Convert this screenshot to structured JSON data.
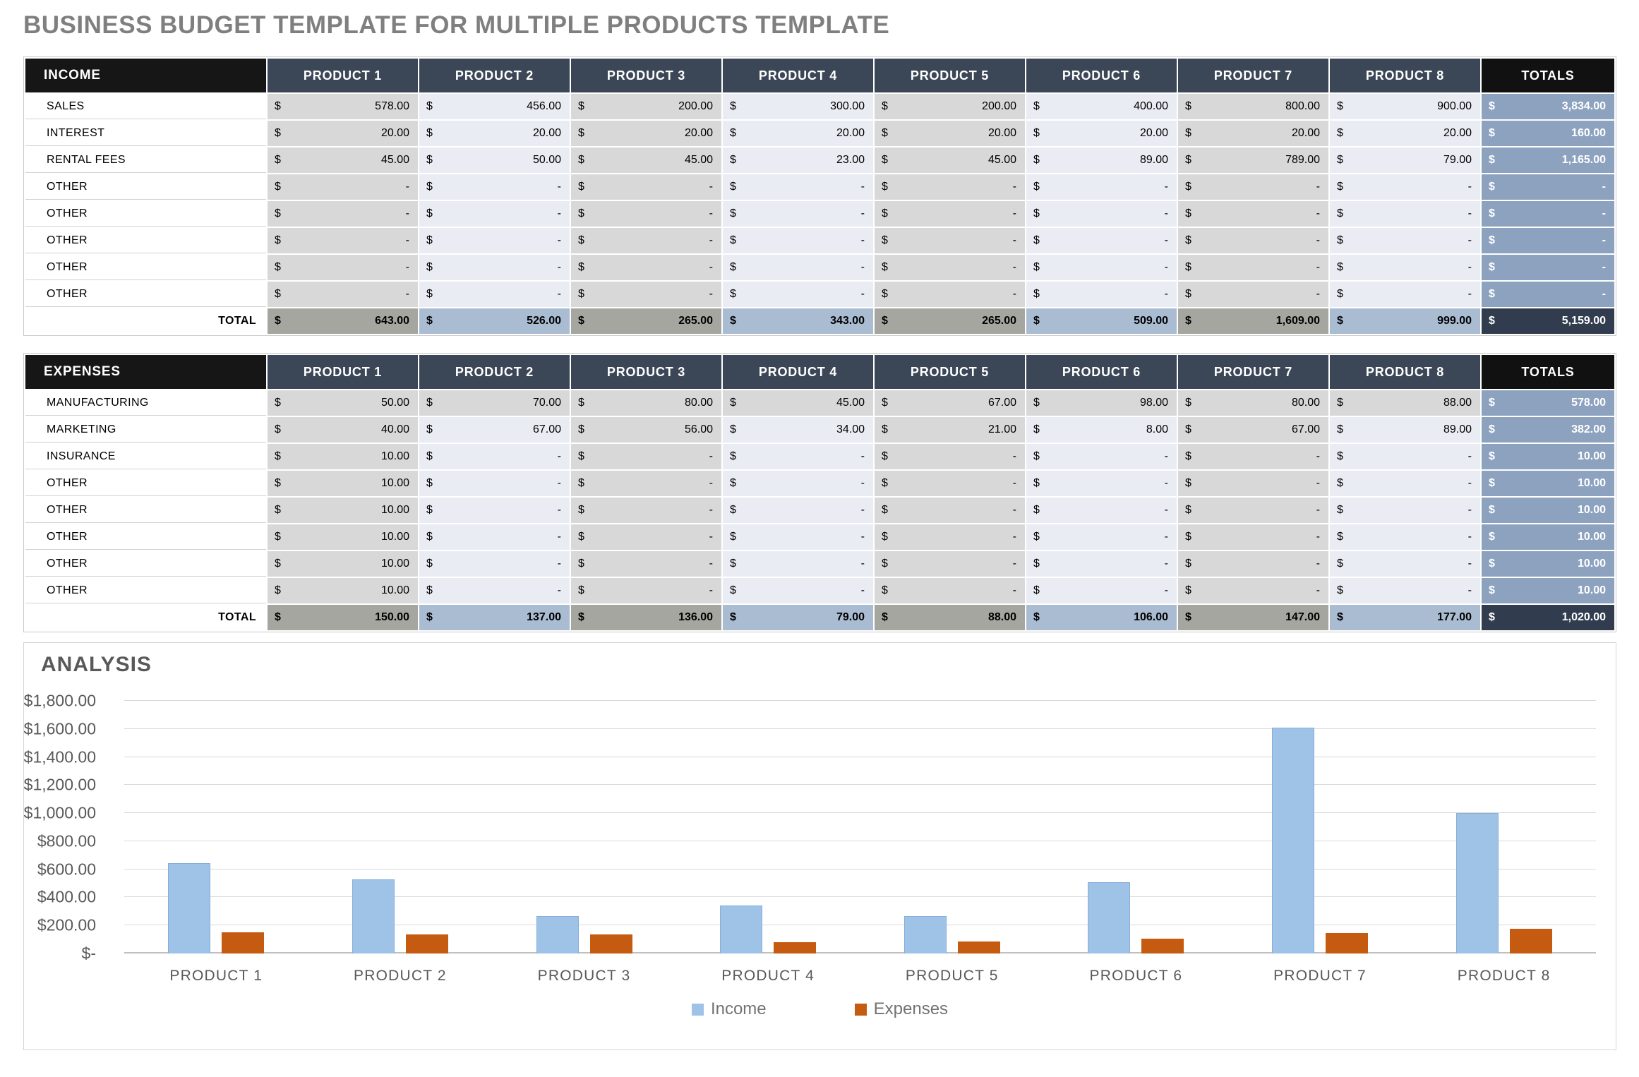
{
  "title": "BUSINESS BUDGET TEMPLATE FOR MULTIPLE PRODUCTS TEMPLATE",
  "currency": "$",
  "colors": {
    "header_black": "#161616",
    "header_navy": "#3b4757",
    "column_gray": "#d8d8d8",
    "column_light": "#e9ecf2",
    "totals_column_blue": "#8ca2bf",
    "total_row_gray": "#a6a6a1",
    "total_row_blue": "#a9bcd2",
    "grand_total_navy": "#313d4f",
    "income_bar": "#9fc2e7",
    "expenses_bar": "#c55a11"
  },
  "tables": [
    {
      "id": "income",
      "header_label": "INCOME",
      "totals_label": "TOTALS",
      "product_columns": [
        "PRODUCT 1",
        "PRODUCT 2",
        "PRODUCT 3",
        "PRODUCT 4",
        "PRODUCT 5",
        "PRODUCT 6",
        "PRODUCT 7",
        "PRODUCT 8"
      ],
      "all_gray_rows": [],
      "rows": [
        {
          "label": "SALES",
          "values": [
            "578.00",
            "456.00",
            "200.00",
            "300.00",
            "200.00",
            "400.00",
            "800.00",
            "900.00"
          ],
          "total": "3,834.00"
        },
        {
          "label": "INTEREST",
          "values": [
            "20.00",
            "20.00",
            "20.00",
            "20.00",
            "20.00",
            "20.00",
            "20.00",
            "20.00"
          ],
          "total": "160.00"
        },
        {
          "label": "RENTAL FEES",
          "values": [
            "45.00",
            "50.00",
            "45.00",
            "23.00",
            "45.00",
            "89.00",
            "789.00",
            "79.00"
          ],
          "total": "1,165.00"
        },
        {
          "label": "OTHER",
          "values": [
            "-",
            "-",
            "-",
            "-",
            "-",
            "-",
            "-",
            "-"
          ],
          "total": "-"
        },
        {
          "label": "OTHER",
          "values": [
            "-",
            "-",
            "-",
            "-",
            "-",
            "-",
            "-",
            "-"
          ],
          "total": "-"
        },
        {
          "label": "OTHER",
          "values": [
            "-",
            "-",
            "-",
            "-",
            "-",
            "-",
            "-",
            "-"
          ],
          "total": "-"
        },
        {
          "label": "OTHER",
          "values": [
            "-",
            "-",
            "-",
            "-",
            "-",
            "-",
            "-",
            "-"
          ],
          "total": "-"
        },
        {
          "label": "OTHER",
          "values": [
            "-",
            "-",
            "-",
            "-",
            "-",
            "-",
            "-",
            "-"
          ],
          "total": "-"
        }
      ],
      "total_row": {
        "label": "TOTAL",
        "values": [
          "643.00",
          "526.00",
          "265.00",
          "343.00",
          "265.00",
          "509.00",
          "1,609.00",
          "999.00"
        ],
        "total": "5,159.00"
      }
    },
    {
      "id": "expenses",
      "header_label": "EXPENSES",
      "totals_label": "TOTALS",
      "product_columns": [
        "PRODUCT 1",
        "PRODUCT 2",
        "PRODUCT 3",
        "PRODUCT 4",
        "PRODUCT 5",
        "PRODUCT 6",
        "PRODUCT 7",
        "PRODUCT 8"
      ],
      "all_gray_rows": [
        0
      ],
      "rows": [
        {
          "label": "MANUFACTURING",
          "values": [
            "50.00",
            "70.00",
            "80.00",
            "45.00",
            "67.00",
            "98.00",
            "80.00",
            "88.00"
          ],
          "total": "578.00"
        },
        {
          "label": "MARKETING",
          "values": [
            "40.00",
            "67.00",
            "56.00",
            "34.00",
            "21.00",
            "8.00",
            "67.00",
            "89.00"
          ],
          "total": "382.00"
        },
        {
          "label": "INSURANCE",
          "values": [
            "10.00",
            "-",
            "-",
            "-",
            "-",
            "-",
            "-",
            "-"
          ],
          "total": "10.00"
        },
        {
          "label": "OTHER",
          "values": [
            "10.00",
            "-",
            "-",
            "-",
            "-",
            "-",
            "-",
            "-"
          ],
          "total": "10.00"
        },
        {
          "label": "OTHER",
          "values": [
            "10.00",
            "-",
            "-",
            "-",
            "-",
            "-",
            "-",
            "-"
          ],
          "total": "10.00"
        },
        {
          "label": "OTHER",
          "values": [
            "10.00",
            "-",
            "-",
            "-",
            "-",
            "-",
            "-",
            "-"
          ],
          "total": "10.00"
        },
        {
          "label": "OTHER",
          "values": [
            "10.00",
            "-",
            "-",
            "-",
            "-",
            "-",
            "-",
            "-"
          ],
          "total": "10.00"
        },
        {
          "label": "OTHER",
          "values": [
            "10.00",
            "-",
            "-",
            "-",
            "-",
            "-",
            "-",
            "-"
          ],
          "total": "10.00"
        }
      ],
      "total_row": {
        "label": "TOTAL",
        "values": [
          "150.00",
          "137.00",
          "136.00",
          "79.00",
          "88.00",
          "106.00",
          "147.00",
          "177.00"
        ],
        "total": "1,020.00"
      }
    }
  ],
  "chart_data": {
    "type": "bar",
    "title": "ANALYSIS",
    "categories": [
      "PRODUCT 1",
      "PRODUCT 2",
      "PRODUCT 3",
      "PRODUCT 4",
      "PRODUCT 5",
      "PRODUCT 6",
      "PRODUCT 7",
      "PRODUCT 8"
    ],
    "series": [
      {
        "name": "Income",
        "color": "#9fc2e7",
        "values": [
          643,
          526,
          265,
          343,
          265,
          509,
          1609,
          999
        ]
      },
      {
        "name": "Expenses",
        "color": "#c55a11",
        "values": [
          150,
          137,
          136,
          79,
          88,
          106,
          147,
          177
        ]
      }
    ],
    "xlabel": "",
    "ylabel": "",
    "ylim": [
      0,
      1800
    ],
    "ytick_step": 200,
    "ytick_labels": [
      "$-",
      "$200.00",
      "$400.00",
      "$600.00",
      "$800.00",
      "$1,000.00",
      "$1,200.00",
      "$1,400.00",
      "$1,600.00",
      "$1,800.00"
    ],
    "grid": true,
    "legend_position": "bottom-center"
  }
}
